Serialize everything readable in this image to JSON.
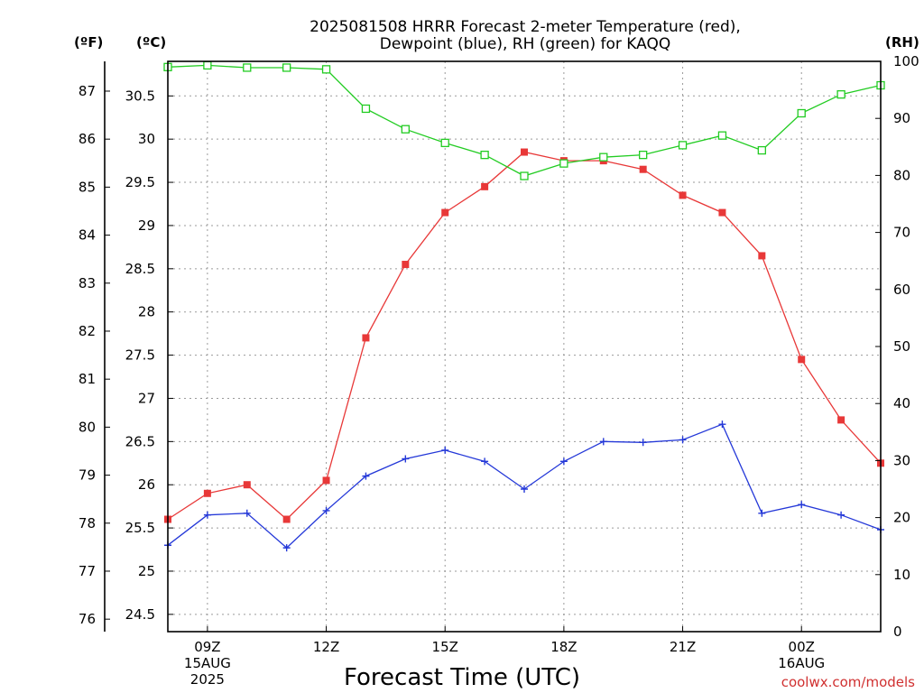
{
  "chart_data": {
    "type": "line",
    "title_line1": "2025081508 HRRR Forecast 2-meter Temperature (red),",
    "title_line2": "Dewpoint (blue), RH (green) for KAQQ",
    "units": {
      "fahrenheit": "(ºF)",
      "celsius": "(ºC)",
      "rh": "(RH)"
    },
    "xlabel": "Forecast Time (UTC)",
    "credit": "coolwx.com/models",
    "x_hours": [
      8,
      9,
      10,
      11,
      12,
      13,
      14,
      15,
      16,
      17,
      18,
      19,
      20,
      21,
      22,
      23,
      24,
      25,
      26
    ],
    "x_ticks": [
      {
        "hour": 9,
        "lines": [
          "09Z",
          "15AUG",
          "2025"
        ]
      },
      {
        "hour": 12,
        "lines": [
          "12Z"
        ]
      },
      {
        "hour": 15,
        "lines": [
          "15Z"
        ]
      },
      {
        "hour": 18,
        "lines": [
          "18Z"
        ]
      },
      {
        "hour": 21,
        "lines": [
          "21Z"
        ]
      },
      {
        "hour": 24,
        "lines": [
          "00Z",
          "16AUG"
        ]
      }
    ],
    "xlim": [
      8,
      26
    ],
    "celsius_ylim": [
      24.3,
      30.9
    ],
    "celsius_ticks": [
      "24.5",
      "25",
      "25.5",
      "26",
      "26.5",
      "27",
      "27.5",
      "28",
      "28.5",
      "29",
      "29.5",
      "30",
      "30.5"
    ],
    "fahrenheit_ticks": [
      "76",
      "77",
      "78",
      "79",
      "80",
      "81",
      "82",
      "83",
      "84",
      "85",
      "86",
      "87"
    ],
    "rh_ylim": [
      0,
      100
    ],
    "rh_ticks": [
      "0",
      "10",
      "20",
      "30",
      "40",
      "50",
      "60",
      "70",
      "80",
      "90",
      "100"
    ],
    "grid": true,
    "series": [
      {
        "name": "Temperature",
        "color": "#e83838",
        "marker": "filled-square",
        "axis": "celsius",
        "values": [
          25.6,
          25.9,
          26.0,
          25.6,
          26.05,
          27.7,
          28.55,
          29.15,
          29.45,
          29.85,
          29.75,
          29.75,
          29.65,
          29.35,
          29.15,
          28.65,
          27.45,
          26.75,
          26.25
        ]
      },
      {
        "name": "Dewpoint",
        "color": "#2438d8",
        "marker": "plus",
        "axis": "celsius",
        "values": [
          25.3,
          25.65,
          25.67,
          25.27,
          25.7,
          26.1,
          26.3,
          26.4,
          26.27,
          25.95,
          26.27,
          26.5,
          26.49,
          26.52,
          26.7,
          25.67,
          25.77,
          25.65,
          25.48
        ]
      },
      {
        "name": "RH",
        "color": "#22cc22",
        "marker": "open-square",
        "axis": "rh",
        "values": [
          99,
          99.3,
          98.9,
          98.9,
          98.6,
          91.7,
          88.1,
          85.7,
          83.6,
          79.9,
          82.1,
          83.2,
          83.6,
          85.3,
          87.0,
          84.4,
          90.9,
          94.2,
          95.8
        ]
      }
    ]
  }
}
